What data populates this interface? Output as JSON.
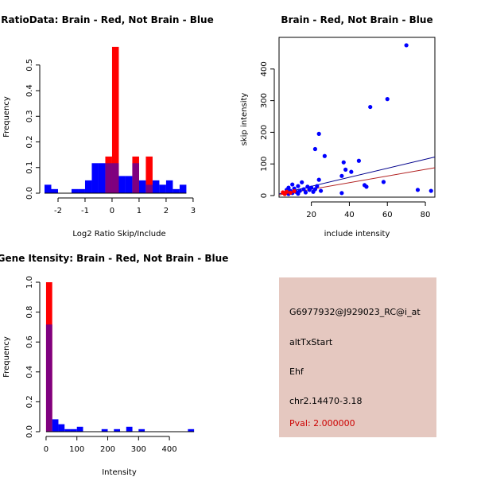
{
  "colors": {
    "red": "#ff0000",
    "blue": "#0000ff",
    "overlap": "#7f007f",
    "panel_bg": "#e5c8c0",
    "pval": "#cc0000",
    "line_blue": "#00008b",
    "line_red": "#b22222"
  },
  "chart_data": [
    {
      "type": "bar",
      "title": "RatioData: Brain - Red, Not Brain - Blue",
      "xlabel": "Log2 Ratio Skip/Include",
      "ylabel": "Frequency",
      "xlim": [
        -2.5,
        3.15
      ],
      "ylim": [
        0,
        0.58
      ],
      "xticks": [
        "-2",
        "-1",
        "0",
        "1",
        "2",
        "3"
      ],
      "yticks": [
        "0.0",
        "0.1",
        "0.2",
        "0.3",
        "0.4",
        "0.5"
      ],
      "series": [
        {
          "name": "Not Brain (blue)",
          "bins": [
            {
              "x0": -2.5,
              "x1": -2.25,
              "v": 0.033
            },
            {
              "x0": -2.25,
              "x1": -2.0,
              "v": 0.016
            },
            {
              "x0": -1.5,
              "x1": -1.25,
              "v": 0.016
            },
            {
              "x0": -1.25,
              "x1": -1.0,
              "v": 0.016
            },
            {
              "x0": -1.0,
              "x1": -0.75,
              "v": 0.05
            },
            {
              "x0": -0.75,
              "x1": -0.5,
              "v": 0.117
            },
            {
              "x0": -0.5,
              "x1": -0.25,
              "v": 0.117
            },
            {
              "x0": -0.25,
              "x1": 0.0,
              "v": 0.117
            },
            {
              "x0": 0.0,
              "x1": 0.25,
              "v": 0.117
            },
            {
              "x0": 0.25,
              "x1": 0.5,
              "v": 0.067
            },
            {
              "x0": 0.5,
              "x1": 0.75,
              "v": 0.067
            },
            {
              "x0": 0.75,
              "x1": 1.0,
              "v": 0.117
            },
            {
              "x0": 1.0,
              "x1": 1.25,
              "v": 0.05
            },
            {
              "x0": 1.25,
              "x1": 1.5,
              "v": 0.033
            },
            {
              "x0": 1.5,
              "x1": 1.75,
              "v": 0.05
            },
            {
              "x0": 1.75,
              "x1": 2.0,
              "v": 0.033
            },
            {
              "x0": 2.0,
              "x1": 2.25,
              "v": 0.05
            },
            {
              "x0": 2.25,
              "x1": 2.5,
              "v": 0.016
            },
            {
              "x0": 2.5,
              "x1": 2.75,
              "v": 0.033
            }
          ]
        },
        {
          "name": "Brain (red)",
          "bins": [
            {
              "x0": -0.25,
              "x1": 0.0,
              "v": 0.143
            },
            {
              "x0": 0.0,
              "x1": 0.25,
              "v": 0.571
            },
            {
              "x0": 0.75,
              "x1": 1.0,
              "v": 0.143
            },
            {
              "x0": 1.25,
              "x1": 1.5,
              "v": 0.143
            }
          ]
        }
      ]
    },
    {
      "type": "scatter",
      "title": "Brain - Red, Not Brain - Blue",
      "xlabel": "include intensity",
      "ylabel": "skip intensity",
      "xlim": [
        3,
        85
      ],
      "ylim": [
        -5,
        500
      ],
      "xticks": [
        "20",
        "40",
        "60",
        "80"
      ],
      "yticks": [
        "0",
        "100",
        "200",
        "300",
        "400"
      ],
      "points": [
        {
          "x": 70,
          "y": 475,
          "c": "blue"
        },
        {
          "x": 60,
          "y": 305,
          "c": "blue"
        },
        {
          "x": 51,
          "y": 280,
          "c": "blue"
        },
        {
          "x": 24,
          "y": 195,
          "c": "blue"
        },
        {
          "x": 27,
          "y": 125,
          "c": "blue"
        },
        {
          "x": 22,
          "y": 147,
          "c": "blue"
        },
        {
          "x": 37,
          "y": 105,
          "c": "blue"
        },
        {
          "x": 45,
          "y": 110,
          "c": "blue"
        },
        {
          "x": 38,
          "y": 82,
          "c": "blue"
        },
        {
          "x": 41,
          "y": 75,
          "c": "blue"
        },
        {
          "x": 36,
          "y": 62,
          "c": "blue"
        },
        {
          "x": 58,
          "y": 43,
          "c": "blue"
        },
        {
          "x": 24,
          "y": 50,
          "c": "blue"
        },
        {
          "x": 48,
          "y": 33,
          "c": "blue"
        },
        {
          "x": 49,
          "y": 28,
          "c": "blue"
        },
        {
          "x": 15,
          "y": 42,
          "c": "blue"
        },
        {
          "x": 10,
          "y": 35,
          "c": "blue"
        },
        {
          "x": 13,
          "y": 30,
          "c": "blue"
        },
        {
          "x": 18,
          "y": 28,
          "c": "blue"
        },
        {
          "x": 20,
          "y": 25,
          "c": "blue"
        },
        {
          "x": 23,
          "y": 30,
          "c": "blue"
        },
        {
          "x": 8,
          "y": 25,
          "c": "blue"
        },
        {
          "x": 11,
          "y": 22,
          "c": "blue"
        },
        {
          "x": 16,
          "y": 20,
          "c": "blue"
        },
        {
          "x": 19,
          "y": 18,
          "c": "blue"
        },
        {
          "x": 7,
          "y": 18,
          "c": "blue"
        },
        {
          "x": 9,
          "y": 15,
          "c": "blue"
        },
        {
          "x": 12,
          "y": 12,
          "c": "blue"
        },
        {
          "x": 14,
          "y": 15,
          "c": "blue"
        },
        {
          "x": 17,
          "y": 10,
          "c": "blue"
        },
        {
          "x": 21,
          "y": 12,
          "c": "blue"
        },
        {
          "x": 25,
          "y": 15,
          "c": "blue"
        },
        {
          "x": 6,
          "y": 8,
          "c": "blue"
        },
        {
          "x": 8,
          "y": 5,
          "c": "blue"
        },
        {
          "x": 10,
          "y": 8,
          "c": "blue"
        },
        {
          "x": 13,
          "y": 6,
          "c": "blue"
        },
        {
          "x": 22,
          "y": 20,
          "c": "blue"
        },
        {
          "x": 36,
          "y": 8,
          "c": "blue"
        },
        {
          "x": 76,
          "y": 18,
          "c": "blue"
        },
        {
          "x": 83,
          "y": 15,
          "c": "blue"
        },
        {
          "x": 5,
          "y": 10,
          "c": "red"
        },
        {
          "x": 7,
          "y": 12,
          "c": "red"
        },
        {
          "x": 9,
          "y": 9,
          "c": "red"
        },
        {
          "x": 11,
          "y": 14,
          "c": "red"
        },
        {
          "x": 6,
          "y": 5,
          "c": "red"
        }
      ],
      "lines": [
        {
          "c": "line_blue",
          "x0": 3,
          "y0": 5,
          "x1": 85,
          "y1": 122
        },
        {
          "c": "line_red",
          "x0": 3,
          "y0": 2,
          "x1": 85,
          "y1": 88
        }
      ]
    },
    {
      "type": "bar",
      "title": "Gene Itensity: Brain - Red, Not Brain - Blue",
      "xlabel": "Intensity",
      "ylabel": "Frequency",
      "xlim": [
        -5,
        490
      ],
      "ylim": [
        0,
        1.0
      ],
      "xticks": [
        "0",
        "100",
        "200",
        "300",
        "400"
      ],
      "yticks": [
        "0.0",
        "0.2",
        "0.4",
        "0.6",
        "0.8",
        "1.0"
      ],
      "series": [
        {
          "name": "Not Brain (blue)",
          "bins": [
            {
              "x0": 0,
              "x1": 20,
              "v": 0.717
            },
            {
              "x0": 20,
              "x1": 40,
              "v": 0.083
            },
            {
              "x0": 40,
              "x1": 60,
              "v": 0.05
            },
            {
              "x0": 60,
              "x1": 80,
              "v": 0.017
            },
            {
              "x0": 80,
              "x1": 100,
              "v": 0.017
            },
            {
              "x0": 100,
              "x1": 120,
              "v": 0.033
            },
            {
              "x0": 180,
              "x1": 200,
              "v": 0.017
            },
            {
              "x0": 220,
              "x1": 240,
              "v": 0.017
            },
            {
              "x0": 260,
              "x1": 280,
              "v": 0.033
            },
            {
              "x0": 300,
              "x1": 320,
              "v": 0.017
            },
            {
              "x0": 460,
              "x1": 480,
              "v": 0.017
            }
          ]
        },
        {
          "name": "Brain (red)",
          "bins": [
            {
              "x0": 0,
              "x1": 20,
              "v": 1.0
            }
          ]
        }
      ]
    }
  ],
  "info_panel": {
    "probe_id": "G6977932@J929023_RC@i_at",
    "event_type": "altTxStart",
    "gene": "Ehf",
    "location": "chr2.14470-3.18",
    "pval": "Pval: 2.000000"
  }
}
